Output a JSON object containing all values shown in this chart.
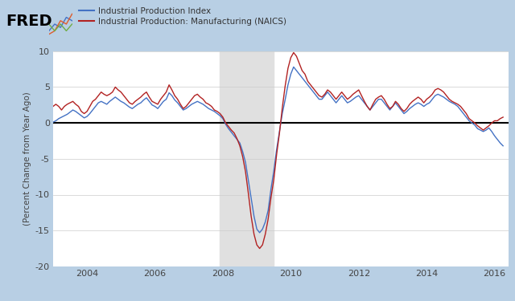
{
  "title": "",
  "ylabel": "(Percent Change from Year Ago)",
  "ylim": [
    -20,
    10
  ],
  "yticks": [
    -20,
    -15,
    -10,
    -5,
    0,
    5,
    10
  ],
  "xlim_start": 2003.0,
  "xlim_end": 2016.42,
  "xticks": [
    2004,
    2006,
    2008,
    2010,
    2012,
    2014,
    2016
  ],
  "recession_start": 2007.917,
  "recession_end": 2009.5,
  "bg_color": "#b8cfe4",
  "plot_bg_color": "#ffffff",
  "recession_color": "#e0e0e0",
  "zero_line_color": "#000000",
  "line1_color": "#4472c4",
  "line2_color": "#b22222",
  "line1_label": "Industrial Production Index",
  "line2_label": "Industrial Production: Manufacturing (NAICS)",
  "legend_fontsize": 7.5,
  "ylabel_fontsize": 7.5,
  "tick_fontsize": 8,
  "ip_index": {
    "dates": [
      2003.0,
      2003.083,
      2003.167,
      2003.25,
      2003.333,
      2003.417,
      2003.5,
      2003.583,
      2003.667,
      2003.75,
      2003.833,
      2003.917,
      2004.0,
      2004.083,
      2004.167,
      2004.25,
      2004.333,
      2004.417,
      2004.5,
      2004.583,
      2004.667,
      2004.75,
      2004.833,
      2004.917,
      2005.0,
      2005.083,
      2005.167,
      2005.25,
      2005.333,
      2005.417,
      2005.5,
      2005.583,
      2005.667,
      2005.75,
      2005.833,
      2005.917,
      2006.0,
      2006.083,
      2006.167,
      2006.25,
      2006.333,
      2006.417,
      2006.5,
      2006.583,
      2006.667,
      2006.75,
      2006.833,
      2006.917,
      2007.0,
      2007.083,
      2007.167,
      2007.25,
      2007.333,
      2007.417,
      2007.5,
      2007.583,
      2007.667,
      2007.75,
      2007.833,
      2007.917,
      2008.0,
      2008.083,
      2008.167,
      2008.25,
      2008.333,
      2008.417,
      2008.5,
      2008.583,
      2008.667,
      2008.75,
      2008.833,
      2008.917,
      2009.0,
      2009.083,
      2009.167,
      2009.25,
      2009.333,
      2009.417,
      2009.5,
      2009.583,
      2009.667,
      2009.75,
      2009.833,
      2009.917,
      2010.0,
      2010.083,
      2010.167,
      2010.25,
      2010.333,
      2010.417,
      2010.5,
      2010.583,
      2010.667,
      2010.75,
      2010.833,
      2010.917,
      2011.0,
      2011.083,
      2011.167,
      2011.25,
      2011.333,
      2011.417,
      2011.5,
      2011.583,
      2011.667,
      2011.75,
      2011.833,
      2011.917,
      2012.0,
      2012.083,
      2012.167,
      2012.25,
      2012.333,
      2012.417,
      2012.5,
      2012.583,
      2012.667,
      2012.75,
      2012.833,
      2012.917,
      2013.0,
      2013.083,
      2013.167,
      2013.25,
      2013.333,
      2013.417,
      2013.5,
      2013.583,
      2013.667,
      2013.75,
      2013.833,
      2013.917,
      2014.0,
      2014.083,
      2014.167,
      2014.25,
      2014.333,
      2014.417,
      2014.5,
      2014.583,
      2014.667,
      2014.75,
      2014.833,
      2014.917,
      2015.0,
      2015.083,
      2015.167,
      2015.25,
      2015.333,
      2015.417,
      2015.5,
      2015.583,
      2015.667,
      2015.75,
      2015.833,
      2015.917,
      2016.0,
      2016.083,
      2016.167,
      2016.25
    ],
    "values": [
      0.1,
      0.3,
      0.6,
      0.8,
      1.0,
      1.2,
      1.5,
      1.8,
      1.6,
      1.3,
      1.0,
      0.7,
      0.9,
      1.3,
      1.8,
      2.3,
      2.8,
      3.0,
      2.8,
      2.6,
      3.0,
      3.3,
      3.6,
      3.3,
      3.0,
      2.8,
      2.5,
      2.2,
      2.0,
      2.3,
      2.6,
      2.8,
      3.2,
      3.5,
      3.0,
      2.5,
      2.3,
      2.0,
      2.5,
      3.0,
      3.3,
      4.2,
      3.8,
      3.2,
      2.8,
      2.3,
      1.8,
      2.0,
      2.3,
      2.6,
      2.8,
      3.0,
      2.8,
      2.6,
      2.3,
      2.0,
      1.8,
      1.6,
      1.3,
      1.0,
      0.6,
      -0.2,
      -0.8,
      -1.3,
      -1.8,
      -2.3,
      -2.8,
      -4.0,
      -5.5,
      -8.0,
      -10.5,
      -13.0,
      -14.8,
      -15.3,
      -14.8,
      -13.8,
      -12.2,
      -9.2,
      -6.7,
      -3.7,
      -1.2,
      1.3,
      3.2,
      5.3,
      6.8,
      7.8,
      7.3,
      6.8,
      6.3,
      5.8,
      5.3,
      4.8,
      4.3,
      3.8,
      3.3,
      3.3,
      3.8,
      4.3,
      3.8,
      3.3,
      2.8,
      3.3,
      3.8,
      3.3,
      2.8,
      3.0,
      3.3,
      3.6,
      3.8,
      3.3,
      2.8,
      2.3,
      1.8,
      2.3,
      2.8,
      3.3,
      3.3,
      2.8,
      2.3,
      1.8,
      2.3,
      2.8,
      2.3,
      1.8,
      1.3,
      1.6,
      2.0,
      2.3,
      2.6,
      2.8,
      2.6,
      2.3,
      2.6,
      2.8,
      3.3,
      3.8,
      4.0,
      3.8,
      3.6,
      3.3,
      3.0,
      2.8,
      2.6,
      2.3,
      1.8,
      1.3,
      0.8,
      0.3,
      0.0,
      -0.3,
      -0.8,
      -1.0,
      -1.2,
      -1.0,
      -0.7,
      -1.2,
      -1.8,
      -2.3,
      -2.8,
      -3.2
    ]
  },
  "ip_mfg": {
    "dates": [
      2003.0,
      2003.083,
      2003.167,
      2003.25,
      2003.333,
      2003.417,
      2003.5,
      2003.583,
      2003.667,
      2003.75,
      2003.833,
      2003.917,
      2004.0,
      2004.083,
      2004.167,
      2004.25,
      2004.333,
      2004.417,
      2004.5,
      2004.583,
      2004.667,
      2004.75,
      2004.833,
      2004.917,
      2005.0,
      2005.083,
      2005.167,
      2005.25,
      2005.333,
      2005.417,
      2005.5,
      2005.583,
      2005.667,
      2005.75,
      2005.833,
      2005.917,
      2006.0,
      2006.083,
      2006.167,
      2006.25,
      2006.333,
      2006.417,
      2006.5,
      2006.583,
      2006.667,
      2006.75,
      2006.833,
      2006.917,
      2007.0,
      2007.083,
      2007.167,
      2007.25,
      2007.333,
      2007.417,
      2007.5,
      2007.583,
      2007.667,
      2007.75,
      2007.833,
      2007.917,
      2008.0,
      2008.083,
      2008.167,
      2008.25,
      2008.333,
      2008.417,
      2008.5,
      2008.583,
      2008.667,
      2008.75,
      2008.833,
      2008.917,
      2009.0,
      2009.083,
      2009.167,
      2009.25,
      2009.333,
      2009.417,
      2009.5,
      2009.583,
      2009.667,
      2009.75,
      2009.833,
      2009.917,
      2010.0,
      2010.083,
      2010.167,
      2010.25,
      2010.333,
      2010.417,
      2010.5,
      2010.583,
      2010.667,
      2010.75,
      2010.833,
      2010.917,
      2011.0,
      2011.083,
      2011.167,
      2011.25,
      2011.333,
      2011.417,
      2011.5,
      2011.583,
      2011.667,
      2011.75,
      2011.833,
      2011.917,
      2012.0,
      2012.083,
      2012.167,
      2012.25,
      2012.333,
      2012.417,
      2012.5,
      2012.583,
      2012.667,
      2012.75,
      2012.833,
      2012.917,
      2013.0,
      2013.083,
      2013.167,
      2013.25,
      2013.333,
      2013.417,
      2013.5,
      2013.583,
      2013.667,
      2013.75,
      2013.833,
      2013.917,
      2014.0,
      2014.083,
      2014.167,
      2014.25,
      2014.333,
      2014.417,
      2014.5,
      2014.583,
      2014.667,
      2014.75,
      2014.833,
      2014.917,
      2015.0,
      2015.083,
      2015.167,
      2015.25,
      2015.333,
      2015.417,
      2015.5,
      2015.583,
      2015.667,
      2015.75,
      2015.833,
      2015.917,
      2016.0,
      2016.083,
      2016.167,
      2016.25
    ],
    "values": [
      2.3,
      2.6,
      2.3,
      1.8,
      2.3,
      2.6,
      2.8,
      3.0,
      2.6,
      2.3,
      1.6,
      1.3,
      1.6,
      2.3,
      3.0,
      3.3,
      3.8,
      4.3,
      4.0,
      3.8,
      4.0,
      4.3,
      5.0,
      4.6,
      4.3,
      3.8,
      3.3,
      2.8,
      2.6,
      3.0,
      3.3,
      3.6,
      4.0,
      4.3,
      3.6,
      3.0,
      2.8,
      2.6,
      3.3,
      3.8,
      4.3,
      5.3,
      4.6,
      3.8,
      3.3,
      2.6,
      2.0,
      2.3,
      2.8,
      3.3,
      3.8,
      4.0,
      3.6,
      3.3,
      2.8,
      2.6,
      2.3,
      1.8,
      1.6,
      1.3,
      0.8,
      0.0,
      -0.5,
      -1.0,
      -1.4,
      -2.2,
      -3.2,
      -4.7,
      -6.8,
      -9.8,
      -13.0,
      -15.5,
      -17.0,
      -17.5,
      -17.0,
      -15.5,
      -13.4,
      -10.4,
      -7.9,
      -4.4,
      -1.4,
      2.1,
      5.1,
      7.6,
      9.1,
      9.8,
      9.3,
      8.3,
      7.3,
      6.8,
      5.8,
      5.3,
      4.8,
      4.3,
      3.8,
      3.6,
      4.0,
      4.6,
      4.3,
      3.8,
      3.3,
      3.8,
      4.3,
      3.8,
      3.3,
      3.6,
      4.0,
      4.3,
      4.6,
      3.8,
      3.0,
      2.3,
      1.8,
      2.6,
      3.3,
      3.6,
      3.8,
      3.3,
      2.6,
      2.0,
      2.3,
      3.0,
      2.6,
      2.0,
      1.6,
      2.0,
      2.6,
      3.0,
      3.3,
      3.6,
      3.3,
      2.8,
      3.3,
      3.6,
      4.0,
      4.6,
      4.8,
      4.6,
      4.3,
      3.8,
      3.3,
      3.0,
      2.8,
      2.6,
      2.3,
      1.8,
      1.3,
      0.6,
      0.3,
      0.0,
      -0.4,
      -0.7,
      -1.0,
      -0.7,
      -0.4,
      0.0,
      0.3,
      0.3,
      0.6,
      0.8
    ]
  }
}
